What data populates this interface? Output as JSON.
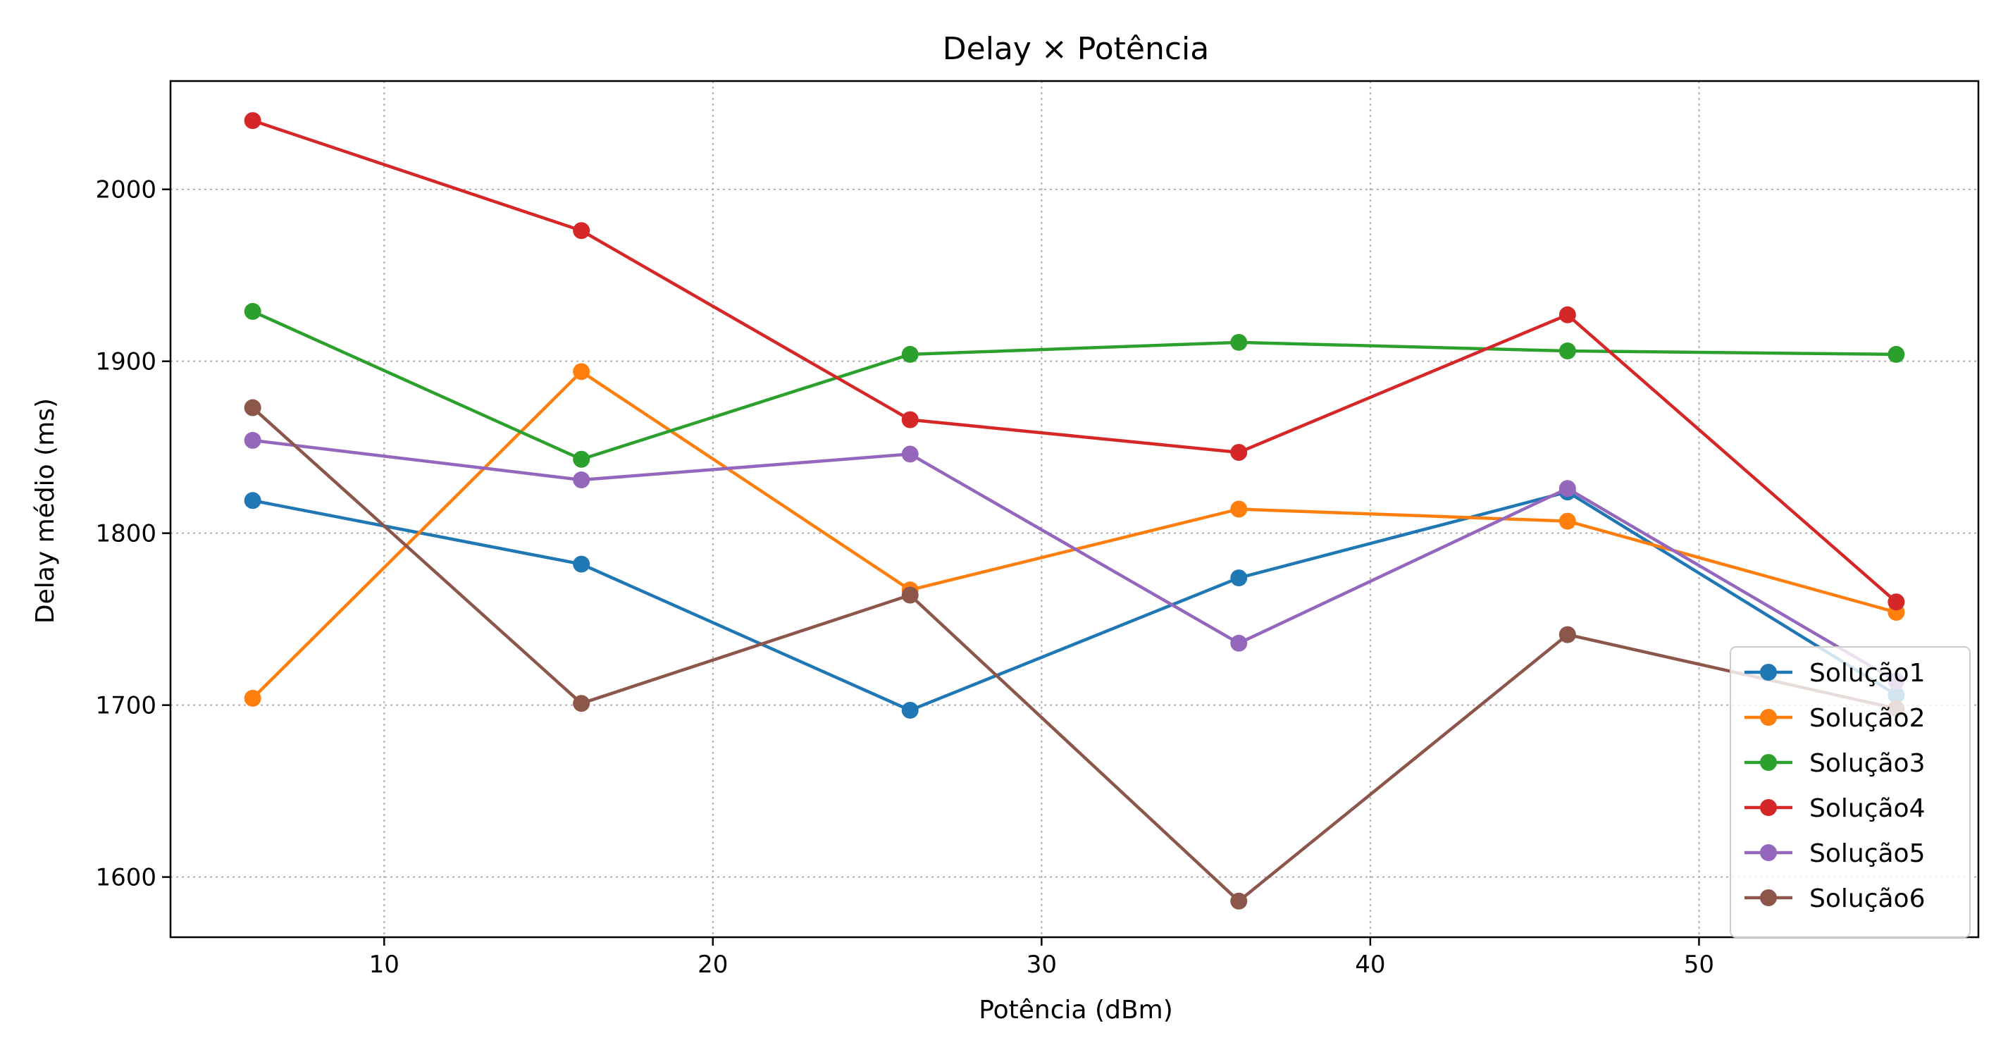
{
  "chart_data": {
    "type": "line",
    "title": "Delay × Potência",
    "xlabel": "Potência (dBm)",
    "ylabel": "Delay médio (ms)",
    "x": [
      6,
      16,
      26,
      36,
      46,
      56
    ],
    "xlim": [
      3.5,
      58.5
    ],
    "ylim": [
      1565,
      2063
    ],
    "xticks": [
      10,
      20,
      30,
      40,
      50
    ],
    "yticks": [
      1600,
      1700,
      1800,
      1900,
      2000
    ],
    "grid": true,
    "legend_position": "lower-right",
    "series": [
      {
        "name": "Solução1",
        "color": "#1f77b4",
        "values": [
          1819,
          1782,
          1697,
          1774,
          1824,
          1706
        ]
      },
      {
        "name": "Solução2",
        "color": "#ff7f0e",
        "values": [
          1704,
          1894,
          1767,
          1814,
          1807,
          1754
        ]
      },
      {
        "name": "Solução3",
        "color": "#2ca02c",
        "values": [
          1929,
          1843,
          1904,
          1911,
          1906,
          1904
        ]
      },
      {
        "name": "Solução4",
        "color": "#d62728",
        "values": [
          2040,
          1976,
          1866,
          1847,
          1927,
          1760
        ]
      },
      {
        "name": "Solução5",
        "color": "#9467bd",
        "values": [
          1854,
          1831,
          1846,
          1736,
          1826,
          1714
        ]
      },
      {
        "name": "Solução6",
        "color": "#8c564b",
        "values": [
          1873,
          1701,
          1764,
          1586,
          1741,
          1698
        ]
      }
    ]
  }
}
